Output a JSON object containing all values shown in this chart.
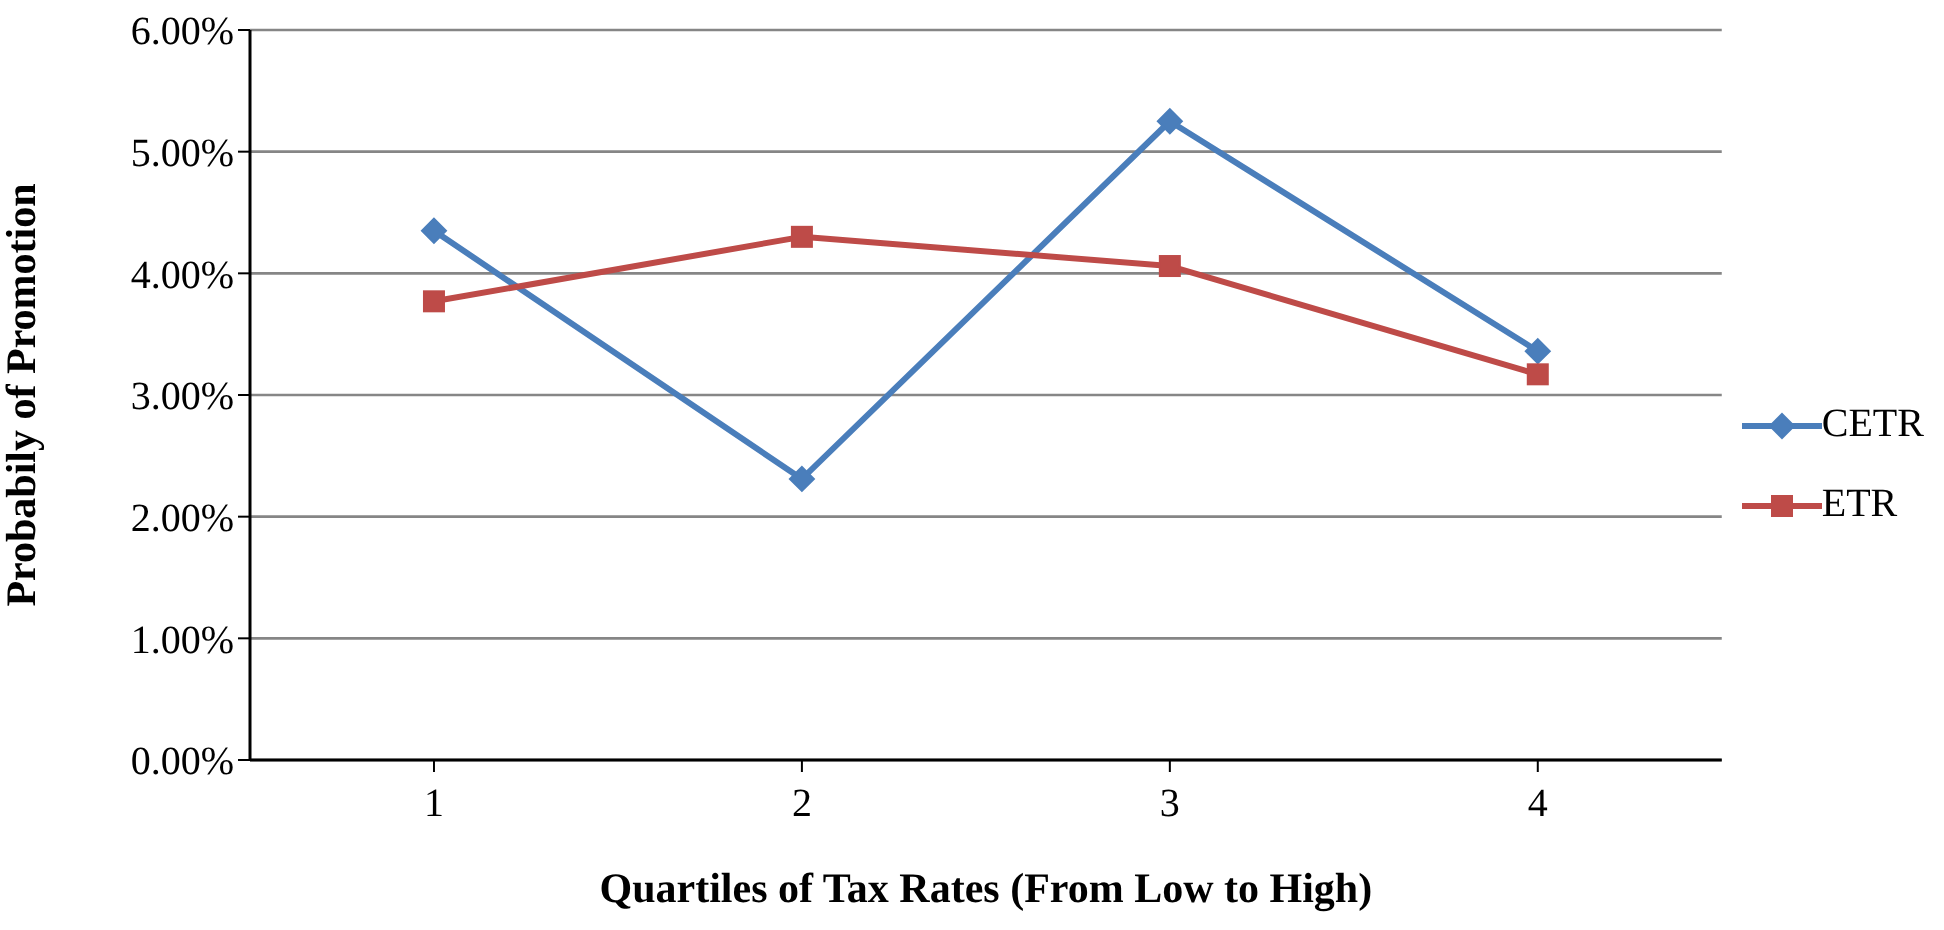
{
  "chart_data": {
    "type": "line",
    "xlabel": "Quartiles of Tax Rates (From Low to High)",
    "ylabel": "Probabily of Promotion",
    "categories": [
      "1",
      "2",
      "3",
      "4"
    ],
    "series": [
      {
        "name": "CETR",
        "color": "#4a7ebb",
        "marker": "diamond",
        "values": [
          4.35,
          2.31,
          5.25,
          3.36
        ]
      },
      {
        "name": "ETR",
        "color": "#be4b48",
        "marker": "square",
        "values": [
          3.77,
          4.3,
          4.06,
          3.17
        ]
      }
    ],
    "ylim": [
      0,
      6
    ],
    "yticks": [
      {
        "value": 0,
        "label": "0.00%"
      },
      {
        "value": 1,
        "label": "1.00%"
      },
      {
        "value": 2,
        "label": "2.00%"
      },
      {
        "value": 3,
        "label": "3.00%"
      },
      {
        "value": 4,
        "label": "4.00%"
      },
      {
        "value": 5,
        "label": "5.00%"
      },
      {
        "value": 6,
        "label": "6.00%"
      }
    ],
    "grid": "y",
    "legend": "right",
    "line_style": "solid"
  }
}
